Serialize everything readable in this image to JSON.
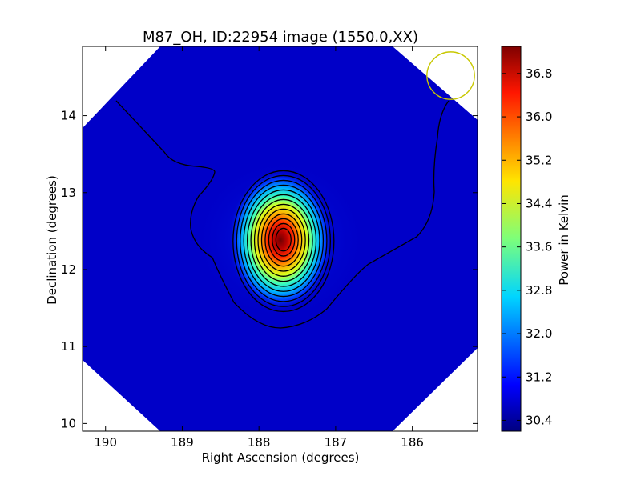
{
  "chart_data": {
    "type": "heatmap",
    "title": "M87_OH, ID:22954 image (1550.0,XX)",
    "xlabel": "Right Ascension (degrees)",
    "ylabel": "Declination (degrees)",
    "xlim": [
      190.3,
      185.15
    ],
    "ylim": [
      9.9,
      14.9
    ],
    "x_ticks": [
      190,
      189,
      188,
      187,
      186
    ],
    "y_ticks": [
      10,
      11,
      12,
      13,
      14
    ],
    "colorbar": {
      "label": "Power in Kelvin",
      "range": [
        30.2,
        37.3
      ],
      "ticks": [
        "30.4",
        "31.2",
        "32.0",
        "32.8",
        "33.6",
        "34.4",
        "35.2",
        "36.0",
        "36.8"
      ]
    },
    "peak": {
      "ra": 187.68,
      "dec": 12.39,
      "value": 37.2
    },
    "background_level": 30.6,
    "beam": {
      "ra": 185.5,
      "dec": 14.52,
      "radius_deg": 0.31,
      "color": "#c8c800"
    },
    "contour_count": 13,
    "image_region": "diamond-shaped map with corners cut off"
  }
}
